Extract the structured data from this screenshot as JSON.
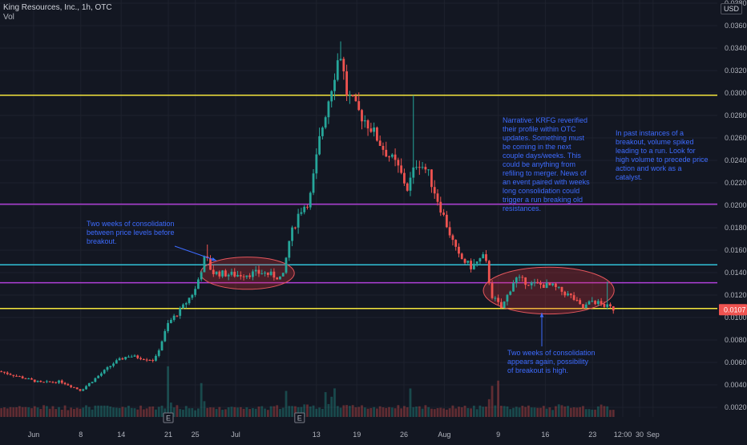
{
  "header": {
    "title": "King Resources, Inc., 1h, OTC",
    "volume_label": "Vol",
    "currency": "USD"
  },
  "price_badge": "0.0107",
  "annotations": {
    "left": "Two weeks of consolidation between price levels before breakout.",
    "narrative": "Narrative: KRFG reverified their profile within OTC updates. Something must be coming in the next couple days/weeks. This could be anything from refiling to merger. News of an event paired with weeks long consolidation could trigger a run breaking old resistances.",
    "right": "In past instances of a breakout, volume spiked leading to a run. Look for high volume to precede price action and work as a catalyst.",
    "bottom": "Two weeks of consolidation appears again, possibility of breakout is high."
  },
  "earnings_markers": [
    "E",
    "E"
  ],
  "colors": {
    "background": "#131722",
    "up": "#26a69a",
    "down": "#ef5350",
    "level_yellow": "#f5e63d",
    "level_purple": "#b03fd8",
    "level_cyan": "#31c2d8",
    "annotation_text": "#3d6bff",
    "ellipse_fill": "#d8323a"
  },
  "chart_data": {
    "type": "candlestick",
    "title": "King Resources, Inc., 1h, OTC",
    "xlabel": "",
    "ylabel": "",
    "ylim": [
      0.0,
      0.0392
    ],
    "grid": true,
    "y_ticks": [
      "0.0020",
      "0.0040",
      "0.0060",
      "0.0080",
      "0.0100",
      "0.0120",
      "0.0140",
      "0.0160",
      "0.0180",
      "0.0200",
      "0.0220",
      "0.0240",
      "0.0260",
      "0.0280",
      "0.0300",
      "0.0320",
      "0.0340",
      "0.0360",
      "0.0380"
    ],
    "x_ticks": [
      "Jun",
      "8",
      "14",
      "21",
      "25",
      "Jul",
      "13",
      "19",
      "26",
      "Aug",
      "9",
      "16",
      "23",
      "12:00",
      "30",
      "Sep"
    ],
    "x_tick_days": [
      1,
      8,
      14,
      21,
      25,
      31,
      43,
      49,
      56,
      62,
      70,
      77,
      84,
      88.5,
      91,
      93
    ],
    "last_price": 0.0107,
    "horizontal_levels": [
      {
        "price": 0.0298,
        "color": "yellow"
      },
      {
        "price": 0.0201,
        "color": "purple"
      },
      {
        "price": 0.0147,
        "color": "cyan"
      },
      {
        "price": 0.0131,
        "color": "purple"
      },
      {
        "price": 0.0108,
        "color": "yellow"
      }
    ],
    "price_path": [
      {
        "day": -4,
        "price": 0.0052
      },
      {
        "day": 2,
        "price": 0.0042
      },
      {
        "day": 5,
        "price": 0.0043
      },
      {
        "day": 8,
        "price": 0.0035
      },
      {
        "day": 11,
        "price": 0.005
      },
      {
        "day": 13,
        "price": 0.006
      },
      {
        "day": 15,
        "price": 0.0066
      },
      {
        "day": 19,
        "price": 0.0062
      },
      {
        "day": 21,
        "price": 0.0095
      },
      {
        "day": 23,
        "price": 0.0108
      },
      {
        "day": 25,
        "price": 0.0125
      },
      {
        "day": 26.5,
        "price": 0.0155
      },
      {
        "day": 27.5,
        "price": 0.014
      },
      {
        "day": 31,
        "price": 0.0138
      },
      {
        "day": 35,
        "price": 0.014
      },
      {
        "day": 38,
        "price": 0.0135
      },
      {
        "day": 39,
        "price": 0.017
      },
      {
        "day": 40.5,
        "price": 0.0195
      },
      {
        "day": 42,
        "price": 0.0205
      },
      {
        "day": 43.5,
        "price": 0.026
      },
      {
        "day": 45,
        "price": 0.03
      },
      {
        "day": 46.5,
        "price": 0.0338
      },
      {
        "day": 47.5,
        "price": 0.03
      },
      {
        "day": 49,
        "price": 0.0285
      },
      {
        "day": 51,
        "price": 0.027
      },
      {
        "day": 53,
        "price": 0.025
      },
      {
        "day": 55,
        "price": 0.0235
      },
      {
        "day": 56.5,
        "price": 0.0215
      },
      {
        "day": 58,
        "price": 0.024
      },
      {
        "day": 59.5,
        "price": 0.023
      },
      {
        "day": 61,
        "price": 0.0205
      },
      {
        "day": 62.5,
        "price": 0.018
      },
      {
        "day": 64,
        "price": 0.0155
      },
      {
        "day": 66,
        "price": 0.0145
      },
      {
        "day": 68,
        "price": 0.0155
      },
      {
        "day": 69,
        "price": 0.012
      },
      {
        "day": 70.5,
        "price": 0.0108
      },
      {
        "day": 72.5,
        "price": 0.0135
      },
      {
        "day": 75,
        "price": 0.013
      },
      {
        "day": 78,
        "price": 0.0128
      },
      {
        "day": 81,
        "price": 0.0118
      },
      {
        "day": 82.5,
        "price": 0.0108
      },
      {
        "day": 84,
        "price": 0.0115
      },
      {
        "day": 86,
        "price": 0.011
      },
      {
        "day": 87.5,
        "price": 0.0107
      }
    ],
    "price_spikes": [
      {
        "day": 26.7,
        "high": 0.0165
      },
      {
        "day": 46.8,
        "high": 0.0346
      },
      {
        "day": 57.5,
        "high": 0.0298
      },
      {
        "day": 86,
        "high": 0.0132
      }
    ],
    "consolidation_zones": [
      {
        "from_day": 26.5,
        "to_day": 39,
        "low": 0.0128,
        "high": 0.0151
      },
      {
        "from_day": 68.5,
        "to_day": 86.5,
        "low": 0.0106,
        "high": 0.0142
      }
    ],
    "volume_peaks": [
      {
        "day": 21,
        "rel": 0.9
      },
      {
        "day": 26,
        "rel": 0.55
      },
      {
        "day": 38.5,
        "rel": 0.4
      },
      {
        "day": 44.5,
        "rel": 0.55
      },
      {
        "day": 45.5,
        "rel": 0.6
      },
      {
        "day": 57,
        "rel": 0.45
      },
      {
        "day": 69,
        "rel": 0.7
      },
      {
        "day": 70,
        "rel": 0.5
      }
    ]
  }
}
